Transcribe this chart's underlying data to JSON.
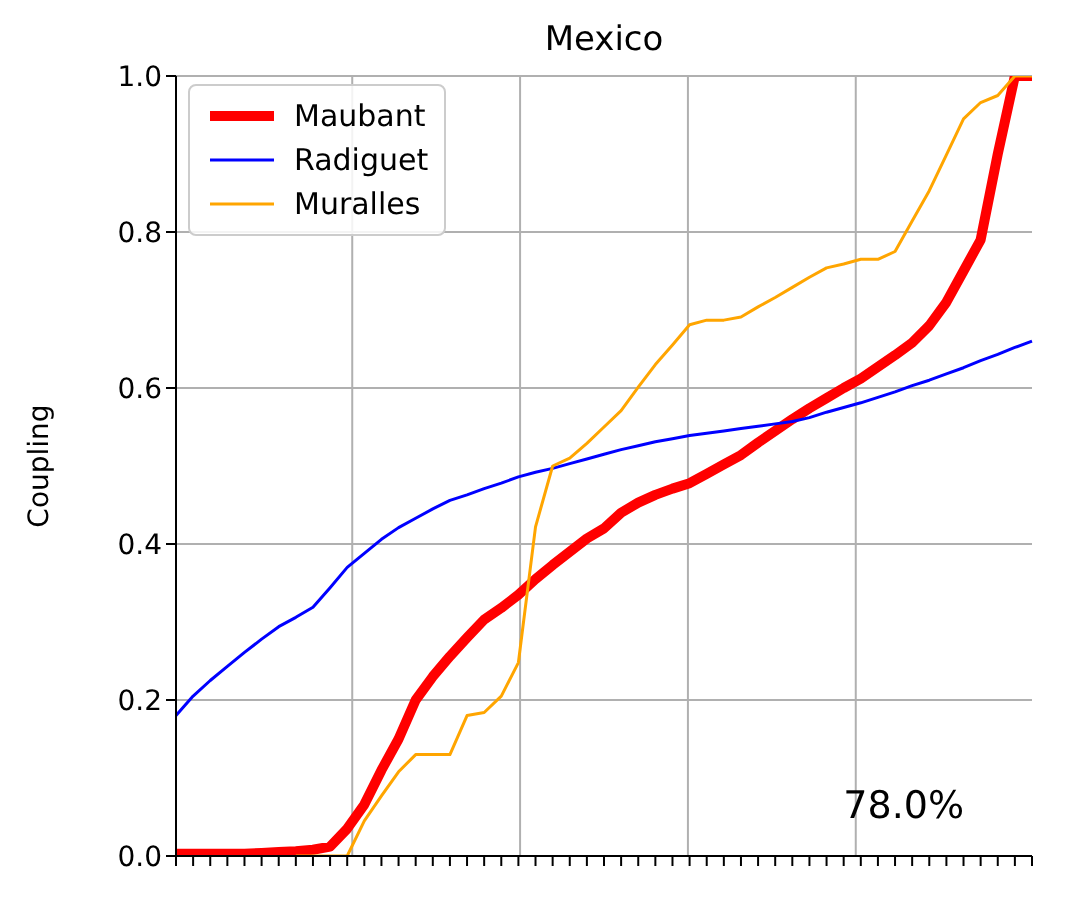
{
  "chart_data": {
    "type": "line",
    "title": "Mexico",
    "ylabel": "Coupling",
    "categories": [
      null,
      null,
      null,
      null,
      null,
      null,
      null,
      null,
      null,
      null,
      null,
      null,
      null,
      null,
      null,
      null,
      null,
      null,
      null,
      null,
      null,
      null,
      null,
      null,
      null,
      null,
      null,
      null,
      null,
      null,
      null,
      null,
      null,
      null,
      null,
      null,
      null,
      null,
      null,
      null,
      null,
      null,
      null,
      null,
      null,
      null,
      null,
      null,
      null,
      null,
      null
    ],
    "ylim": [
      0,
      1
    ],
    "yticks": [
      {
        "value": 0,
        "label": "0.0"
      },
      {
        "value": 0.2,
        "label": "0.2"
      },
      {
        "value": 0.4,
        "label": "0.4"
      },
      {
        "value": 0.6,
        "label": "0.6"
      },
      {
        "value": 0.8,
        "label": "0.8"
      },
      {
        "value": 1,
        "label": "1.0"
      }
    ],
    "grid": true,
    "legend": "top left",
    "marker": "none",
    "line_style": "solid",
    "annotations": [
      "78.0%"
    ],
    "series": [
      {
        "name": "Maubant",
        "color": "#ff0000",
        "values": [
          0.003,
          0.003,
          0.003,
          0.003,
          0.003,
          0.004,
          0.005,
          0.006,
          0.008,
          0.012,
          0.035,
          0.066,
          0.11,
          0.15,
          0.2,
          0.23,
          0.256,
          0.28,
          0.303,
          0.318,
          0.335,
          0.355,
          0.373,
          0.39,
          0.407,
          0.42,
          0.44,
          0.453,
          0.463,
          0.471,
          0.478,
          0.49,
          0.502,
          0.514,
          0.53,
          0.545,
          0.56,
          0.574,
          0.587,
          0.6,
          0.612,
          0.627,
          0.642,
          0.658,
          0.68,
          0.71,
          0.75,
          0.79,
          0.9,
          1.0,
          1.0
        ]
      },
      {
        "name": "Radiguet",
        "color": "#0000ff",
        "values": [
          0.18,
          0.205,
          0.225,
          0.243,
          0.261,
          0.278,
          0.294,
          0.306,
          0.319,
          0.344,
          0.37,
          0.388,
          0.406,
          0.421,
          0.433,
          0.445,
          0.456,
          0.463,
          0.471,
          0.478,
          0.486,
          0.492,
          0.497,
          0.503,
          0.509,
          0.515,
          0.521,
          0.526,
          0.531,
          0.535,
          0.539,
          0.542,
          0.545,
          0.548,
          0.551,
          0.554,
          0.557,
          0.562,
          0.569,
          0.575,
          0.581,
          0.588,
          0.595,
          0.603,
          0.61,
          0.618,
          0.626,
          0.635,
          0.643,
          0.652,
          0.66
        ]
      },
      {
        "name": "Muralles",
        "color": "#ffa500",
        "values": [
          null,
          null,
          null,
          null,
          null,
          null,
          null,
          0,
          0,
          0,
          0,
          0.045,
          0.077,
          0.108,
          0.13,
          0.13,
          0.13,
          0.18,
          0.184,
          0.205,
          0.248,
          0.422,
          0.5,
          0.51,
          0.529,
          0.55,
          0.571,
          0.601,
          0.63,
          0.655,
          0.681,
          0.687,
          0.687,
          0.691,
          0.704,
          0.716,
          0.729,
          0.742,
          0.754,
          0.759,
          0.765,
          0.765,
          0.775,
          0.814,
          0.853,
          0.899,
          0.945,
          0.966,
          0.975,
          1.0,
          1.0
        ]
      }
    ]
  }
}
